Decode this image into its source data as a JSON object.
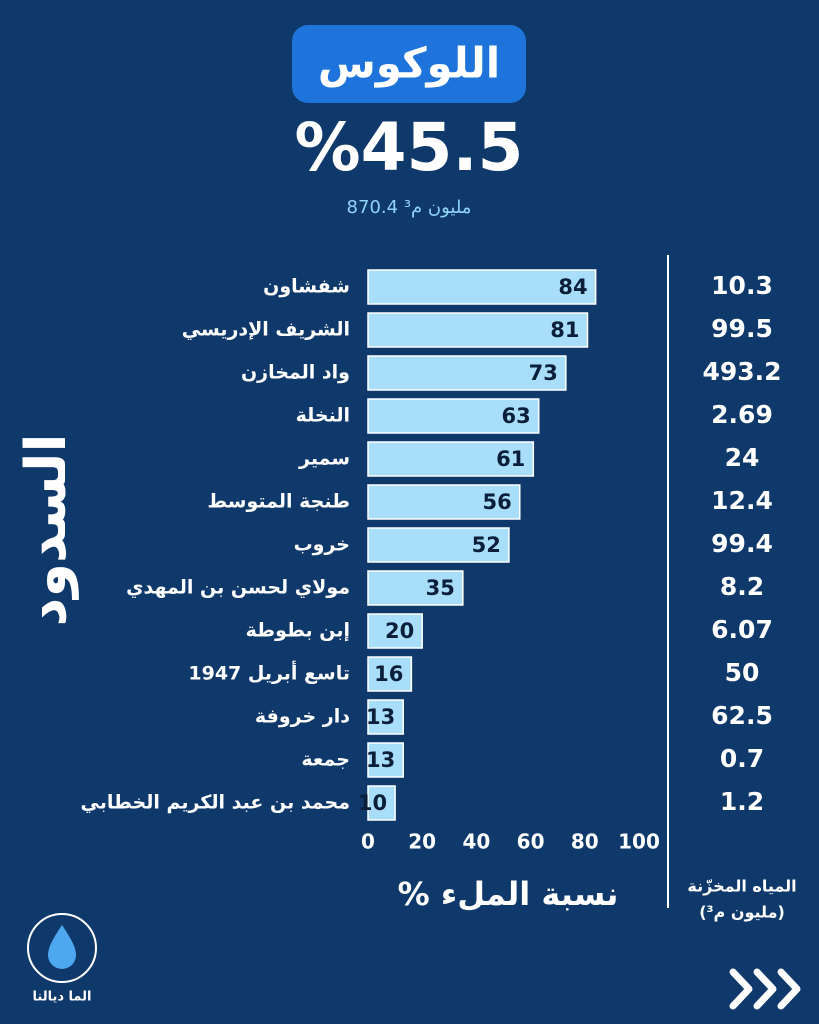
{
  "chart_data": {
    "type": "bar",
    "orientation": "horizontal",
    "title": "اللوكوس",
    "headline": "%45.5",
    "subtitle": "870.4 مليون م³",
    "ylabel": "السدود",
    "xlabel": "نسبة الملء %",
    "categories": [
      "شفشاون",
      "الشريف الإدريسي",
      "واد المخازن",
      "النخلة",
      "سمير",
      "طنجة المتوسط",
      "خروب",
      "مولاي لحسن بن المهدي",
      "إبن بطوطة",
      "تاسع أبريل 1947",
      "دار خروفة",
      "جمعة",
      "محمد بن عبد الكريم الخطابي"
    ],
    "values": [
      84,
      81,
      73,
      63,
      61,
      56,
      52,
      35,
      20,
      16,
      13,
      13,
      10
    ],
    "color": "#a9defa",
    "xlim": [
      0,
      100
    ],
    "xticks": [
      0,
      20,
      40,
      60,
      80,
      100
    ],
    "storage_header": "المياه المخزّنة",
    "storage_unit": "(مليون م³)",
    "storage": [
      10.3,
      99.5,
      493.2,
      2.69,
      24,
      12.4,
      99.4,
      8.2,
      6.07,
      50,
      62.5,
      0.7,
      1.2
    ]
  },
  "brand": "الما ديالنا"
}
